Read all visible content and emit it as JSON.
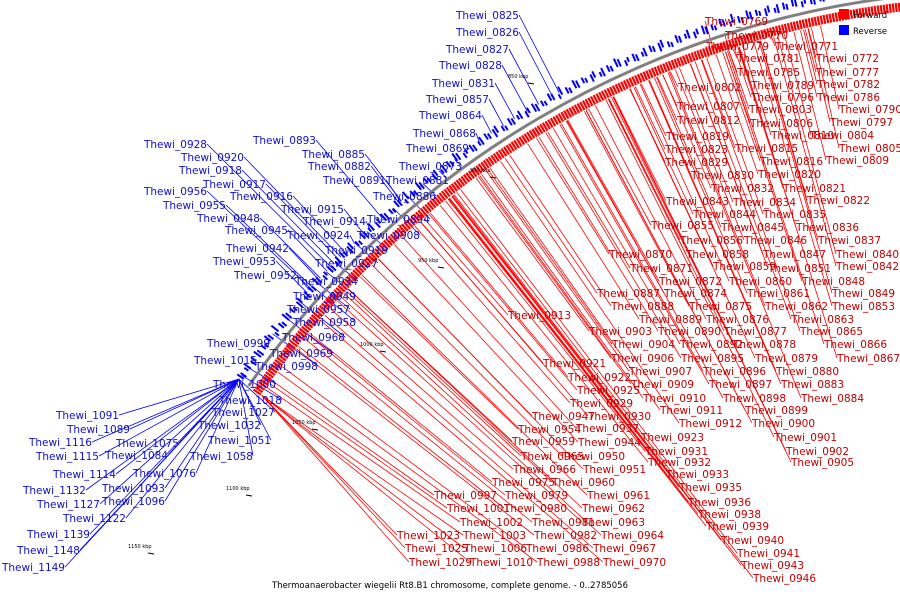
{
  "caption": "Thermoanaerobacter wiegelii Rt8.B1 chromosome, complete genome. - 0..2785056",
  "legend": [
    {
      "label": "Forward",
      "color": "#ff0000"
    },
    {
      "label": "Reverse",
      "color": "#0000ff"
    }
  ],
  "ticks": [
    "850 kbp",
    "900 kbp",
    "950 kbp",
    "1000 kbp",
    "1050 kbp",
    "1100 kbp",
    "1150 kbp"
  ],
  "forward_genes": [
    "Thewi_0769",
    "Thewi_0770",
    "Thewi_0779",
    "Thewi_0771",
    "Thewi_0781",
    "Thewi_0772",
    "Thewi_0785",
    "Thewi_0777",
    "Thewi_0802",
    "Thewi_0789",
    "Thewi_0782",
    "Thewi_0796",
    "Thewi_0786",
    "Thewi_0807",
    "Thewi_0803",
    "Thewi_0790",
    "Thewi_0812",
    "Thewi_0806",
    "Thewi_0797",
    "Thewi_0819",
    "Thewi_0810",
    "Thewi_0804",
    "Thewi_0823",
    "Thewi_0815",
    "Thewi_0805",
    "Thewi_0829",
    "Thewi_0816",
    "Thewi_0809",
    "Thewi_0830",
    "Thewi_0820",
    "Thewi_0832",
    "Thewi_0821",
    "Thewi_0843",
    "Thewi_0834",
    "Thewi_0822",
    "Thewi_0844",
    "Thewi_0835",
    "Thewi_0855",
    "Thewi_0845",
    "Thewi_0836",
    "Thewi_0856",
    "Thewi_0846",
    "Thewi_0837",
    "Thewi_0870",
    "Thewi_0858",
    "Thewi_0847",
    "Thewi_0840",
    "Thewi_0871",
    "Thewi_0859",
    "Thewi_0851",
    "Thewi_0842",
    "Thewi_0872",
    "Thewi_0860",
    "Thewi_0848",
    "Thewi_0887",
    "Thewi_0874",
    "Thewi_0861",
    "Thewi_0849",
    "Thewi_0888",
    "Thewi_0875",
    "Thewi_0862",
    "Thewi_0853",
    "Thewi_0913",
    "Thewi_0889",
    "Thewi_0876",
    "Thewi_0863",
    "Thewi_0903",
    "Thewi_0890",
    "Thewi_0877",
    "Thewi_0865",
    "Thewi_0904",
    "Thewi_0892",
    "Thewi_0878",
    "Thewi_0866",
    "Thewi_0906",
    "Thewi_0895",
    "Thewi_0879",
    "Thewi_0867",
    "Thewi_0921",
    "Thewi_0907",
    "Thewi_0896",
    "Thewi_0880",
    "Thewi_0922",
    "Thewi_0909",
    "Thewi_0897",
    "Thewi_0883",
    "Thewi_0925",
    "Thewi_0910",
    "Thewi_0898",
    "Thewi_0884",
    "Thewi_0929",
    "Thewi_0911",
    "Thewi_0899",
    "Thewi_0947",
    "Thewi_0930",
    "Thewi_0912",
    "Thewi_0900",
    "Thewi_0954",
    "Thewi_0937",
    "Thewi_0923",
    "Thewi_0901",
    "Thewi_0959",
    "Thewi_0944",
    "Thewi_0931",
    "Thewi_0902",
    "Thewi_0965",
    "Thewi_0950",
    "Thewi_0932",
    "Thewi_0905",
    "Thewi_0966",
    "Thewi_0951",
    "Thewi_0933",
    "Thewi_0975",
    "Thewi_0960",
    "Thewi_0935",
    "Thewi_0997",
    "Thewi_0979",
    "Thewi_0961",
    "Thewi_0936",
    "Thewi_1001",
    "Thewi_0980",
    "Thewi_0962",
    "Thewi_0938",
    "Thewi_1002",
    "Thewi_0981",
    "Thewi_0963",
    "Thewi_0939",
    "Thewi_1023",
    "Thewi_1003",
    "Thewi_0982",
    "Thewi_0964",
    "Thewi_0940",
    "Thewi_1025",
    "Thewi_1006",
    "Thewi_0986",
    "Thewi_0967",
    "Thewi_0941",
    "Thewi_1029",
    "Thewi_1010",
    "Thewi_0988",
    "Thewi_0970",
    "Thewi_0943",
    "Thewi_0946"
  ],
  "reverse_genes": [
    "Thewi_0825",
    "Thewi_0826",
    "Thewi_0827",
    "Thewi_0828",
    "Thewi_0831",
    "Thewi_0857",
    "Thewi_0864",
    "Thewi_0868",
    "Thewi_0893",
    "Thewi_0869",
    "Thewi_0928",
    "Thewi_0885",
    "Thewi_0873",
    "Thewi_0920",
    "Thewi_0882",
    "Thewi_0918",
    "Thewi_0891",
    "Thewi_0881",
    "Thewi_0917",
    "Thewi_0956",
    "Thewi_0916",
    "Thewi_0886",
    "Thewi_0955",
    "Thewi_0915",
    "Thewi_0948",
    "Thewi_0914",
    "Thewi_0894",
    "Thewi_0945",
    "Thewi_0924",
    "Thewi_0908",
    "Thewi_0942",
    "Thewi_0919",
    "Thewi_0953",
    "Thewi_0927",
    "Thewi_0952",
    "Thewi_0934",
    "Thewi_0949",
    "Thewi_0957",
    "Thewi_0958",
    "Thewi_0968",
    "Thewi_0999",
    "Thewi_0969",
    "Thewi_1015",
    "Thewi_0998",
    "Thewi_1000",
    "Thewi_1018",
    "Thewi_1027",
    "Thewi_1091",
    "Thewi_1032",
    "Thewi_1089",
    "Thewi_1051",
    "Thewi_1116",
    "Thewi_1075",
    "Thewi_1058",
    "Thewi_1115",
    "Thewi_1084",
    "Thewi_1114",
    "Thewi_1076",
    "Thewi_1093",
    "Thewi_1132",
    "Thewi_1096",
    "Thewi_1127",
    "Thewi_1122",
    "Thewi_1139",
    "Thewi_1148",
    "Thewi_1149"
  ]
}
